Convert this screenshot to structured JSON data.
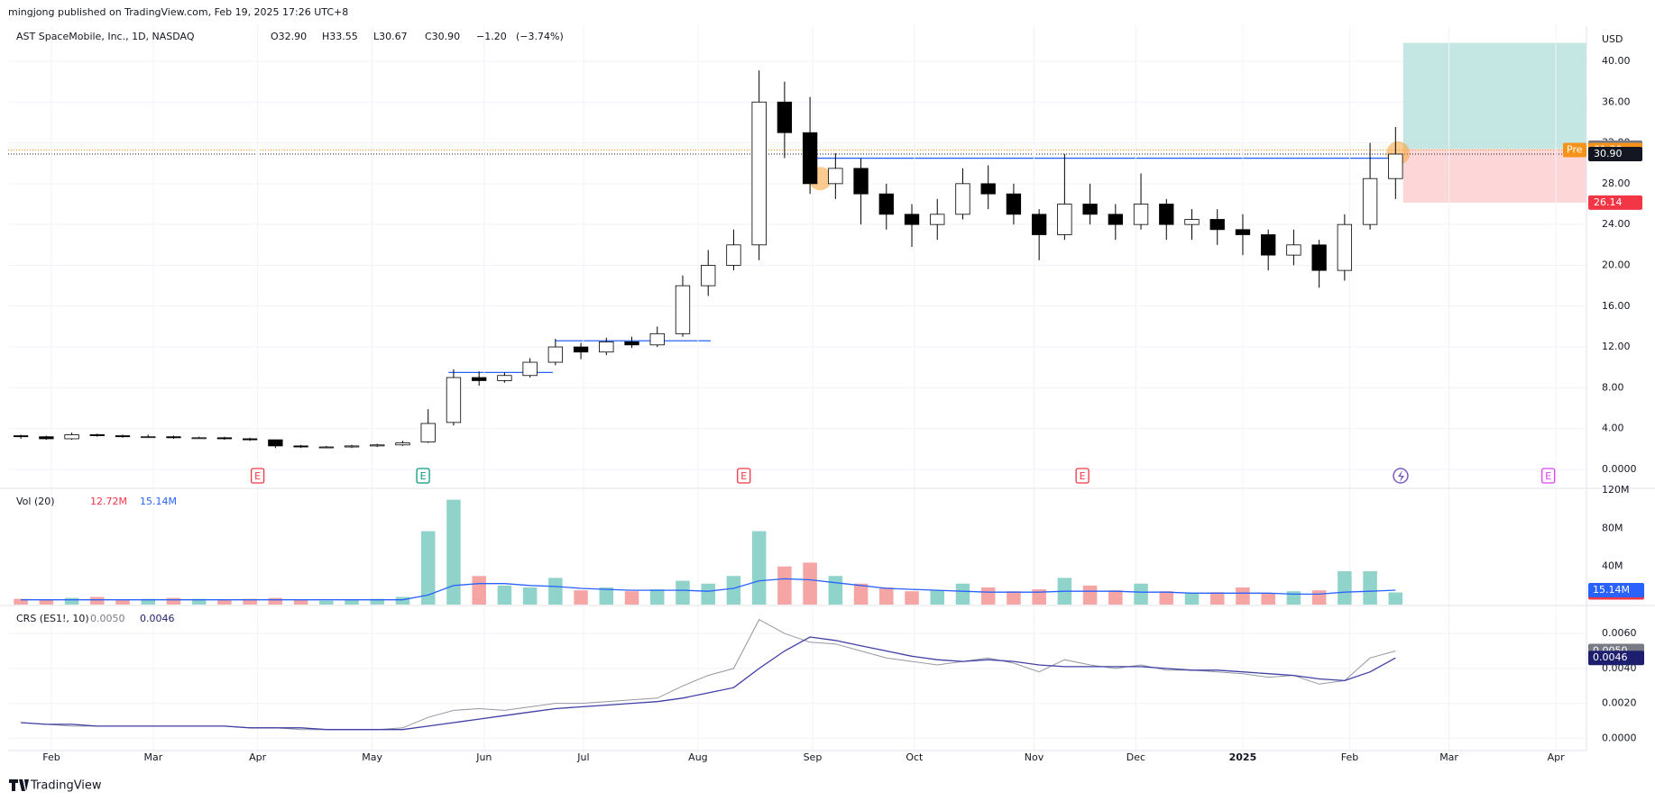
{
  "header": {
    "publisher": "mingjong published on TradingView.com, Feb 19, 2025 17:26 UTC+8",
    "footer": "TradingView"
  },
  "chart_data": [
    {
      "type": "candlestick",
      "title": "AST SpaceMobile, Inc., 1D, NASDAQ",
      "currency": "USD",
      "legend_values": [
        32.9,
        33.55,
        30.67,
        30.9,
        -1.2,
        -3.74
      ],
      "legend_labels": [
        "O32.90",
        "H33.55",
        "L30.67",
        "C30.90",
        "−1.20",
        "(−3.74%)"
      ],
      "up_color": "#ffffff",
      "down_color": "#000000",
      "open": [
        3.3,
        3.2,
        3.0,
        3.4,
        3.3,
        3.2,
        3.2,
        3.1,
        3.1,
        3.0,
        2.9,
        2.3,
        2.2,
        2.2,
        2.3,
        2.4,
        2.7,
        4.6,
        9.0,
        8.7,
        9.2,
        10.5,
        12.0,
        11.5,
        12.5,
        12.2,
        13.3,
        18.0,
        20.0,
        22.0,
        36.0,
        33.0,
        28.0,
        29.5,
        27.0,
        25.0,
        24.0,
        25.0,
        28.0,
        27.0,
        25.0,
        23.0,
        26.0,
        25.0,
        24.0,
        26.0,
        24.0,
        24.5,
        23.5,
        23.0,
        21.0,
        22.0,
        19.5,
        24.0,
        28.5
      ],
      "high": [
        3.4,
        3.3,
        3.6,
        3.5,
        3.4,
        3.4,
        3.3,
        3.2,
        3.2,
        3.1,
        2.9,
        2.4,
        2.3,
        2.4,
        2.5,
        2.8,
        5.9,
        9.8,
        9.6,
        9.5,
        10.9,
        12.8,
        12.4,
        12.9,
        13.0,
        14.0,
        19.0,
        21.5,
        23.5,
        39.1,
        38.0,
        36.5,
        31.0,
        30.5,
        28.0,
        26.0,
        26.5,
        29.5,
        29.8,
        28.0,
        25.5,
        30.9,
        28.0,
        26.0,
        29.0,
        26.5,
        25.5,
        25.5,
        25.0,
        23.5,
        23.5,
        22.5,
        25.0,
        32.0,
        33.55
      ],
      "low": [
        3.0,
        2.9,
        2.9,
        3.2,
        3.1,
        3.1,
        3.0,
        3.0,
        2.9,
        2.8,
        2.1,
        2.1,
        2.1,
        2.1,
        2.2,
        2.3,
        2.6,
        4.3,
        8.2,
        8.5,
        9.0,
        10.2,
        10.8,
        11.2,
        11.9,
        12.0,
        13.0,
        17.0,
        19.5,
        20.5,
        30.5,
        27.0,
        26.5,
        24.0,
        23.5,
        21.8,
        22.5,
        24.5,
        25.5,
        24.0,
        20.5,
        22.5,
        24.0,
        22.5,
        23.5,
        22.5,
        22.5,
        22.0,
        21.0,
        19.5,
        20.0,
        17.8,
        18.5,
        23.5,
        26.5
      ],
      "close": [
        3.2,
        3.0,
        3.4,
        3.3,
        3.2,
        3.2,
        3.1,
        3.1,
        3.0,
        2.9,
        2.3,
        2.2,
        2.2,
        2.3,
        2.4,
        2.6,
        4.5,
        9.0,
        8.7,
        9.2,
        10.5,
        12.0,
        11.5,
        12.5,
        12.2,
        13.3,
        18.0,
        20.0,
        22.0,
        36.0,
        33.0,
        28.0,
        29.5,
        27.0,
        25.0,
        24.0,
        25.0,
        28.0,
        27.0,
        25.0,
        23.0,
        26.0,
        25.0,
        24.0,
        26.0,
        24.0,
        24.5,
        23.5,
        23.0,
        21.0,
        22.0,
        19.5,
        24.0,
        28.5,
        30.9
      ],
      "xlim": [
        0,
        62
      ],
      "ylim": [
        -1.77,
        43.44
      ],
      "yticks": [
        {
          "value": 0,
          "label": "0.0000"
        },
        {
          "value": 4,
          "label": "4.00"
        },
        {
          "value": 8,
          "label": "8.00"
        },
        {
          "value": 12,
          "label": "12.00"
        },
        {
          "value": 16,
          "label": "16.00"
        },
        {
          "value": 20,
          "label": "20.00"
        },
        {
          "value": 24,
          "label": "24.00"
        },
        {
          "value": 28,
          "label": "28.00"
        },
        {
          "value": 32,
          "label": "32.00"
        },
        {
          "value": 36,
          "label": "36.00"
        },
        {
          "value": 40,
          "label": "40.00"
        }
      ],
      "grid": true,
      "price_labels": [
        {
          "value": 31.53,
          "label": "31.53",
          "color": "#787b86"
        },
        {
          "value": 31.3,
          "label": "31.30",
          "color": "#f7931a",
          "tag": "Pre",
          "line": true
        },
        {
          "value": 30.9,
          "label": "30.90",
          "color": "#131722",
          "line": true
        },
        {
          "value": 26.14,
          "label": "26.14",
          "color": "#f23645"
        }
      ],
      "lines": [
        {
          "y": 30.5,
          "x": [
            31.6,
            54.3
          ],
          "color": "#2962ff"
        },
        {
          "y": 9.5,
          "x": [
            17.3,
            21.4
          ],
          "color": "#2962ff"
        },
        {
          "y": 12.6,
          "x": [
            21.5,
            27.6
          ],
          "color": "#2962ff"
        }
      ],
      "position": {
        "x": [
          54.8,
          62
        ],
        "entry": 31.4,
        "target": 41.8,
        "stop": 26.14,
        "colors": [
          "#b2dfdb",
          "#fdd3d3"
        ]
      },
      "highlights": [
        {
          "x": 31.9,
          "y": 28.5,
          "color": "#f7a034"
        },
        {
          "x": 54.6,
          "y": 31.0,
          "color": "#f7a034"
        }
      ],
      "markers": [
        {
          "x": 9.8,
          "label": "E",
          "color": "#f23645"
        },
        {
          "x": 16.3,
          "label": "E",
          "color": "#089981"
        },
        {
          "x": 28.9,
          "label": "E",
          "color": "#f23645"
        },
        {
          "x": 42.2,
          "label": "E",
          "color": "#f23645"
        },
        {
          "x": 54.7,
          "color": "#7e57c2"
        },
        {
          "x": 60.5,
          "label": "E",
          "color": "#e040fb"
        }
      ]
    },
    {
      "type": "bar",
      "title": "Vol (20)",
      "xlim": [
        0,
        62
      ],
      "ylim": [
        0,
        121
      ],
      "yticks": [
        {
          "value": 40,
          "label": "40M"
        },
        {
          "value": 80,
          "label": "80M"
        },
        {
          "value": 120,
          "label": "120M"
        }
      ],
      "series": [
        {
          "up_color": "#8fd3cb",
          "down_color": "#f5a6a4",
          "values": [
            6,
            5,
            7,
            8,
            5,
            6,
            7,
            6,
            5,
            6,
            7,
            5,
            4,
            5,
            6,
            8,
            77,
            110,
            30,
            20,
            18,
            28,
            15,
            18,
            14,
            16,
            25,
            22,
            30,
            77,
            40,
            44,
            30,
            22,
            18,
            14,
            15,
            22,
            18,
            14,
            16,
            28,
            20,
            15,
            22,
            14,
            12,
            13,
            18,
            12,
            14,
            15,
            35,
            35,
            12.72
          ]
        },
        {
          "color": "#2962ff",
          "values": [
            5,
            5,
            5,
            5,
            5,
            5,
            5,
            5,
            5,
            5,
            5,
            5,
            5,
            5,
            5,
            5,
            10,
            20,
            22,
            22,
            20,
            19,
            17,
            16,
            15,
            15,
            15,
            14,
            17,
            25,
            27,
            26,
            23,
            20,
            17,
            16,
            15,
            14,
            13,
            13,
            13,
            14,
            14,
            14,
            13,
            13,
            12,
            12,
            12,
            12,
            11,
            11,
            13,
            14,
            15.14
          ]
        }
      ],
      "last_labels": [
        "12.72M",
        "15.14M"
      ],
      "last_colors": [
        "#f23645",
        "#2962ff"
      ]
    },
    {
      "type": "line",
      "title": "CRS (ES1!, 10)",
      "xlim": [
        0,
        62
      ],
      "ylim": [
        -0.0007,
        0.0075
      ],
      "yticks": [
        {
          "value": 0,
          "label": "0.0000"
        },
        {
          "value": 0.002,
          "label": "0.0020"
        },
        {
          "value": 0.004,
          "label": "0.0040"
        },
        {
          "value": 0.006,
          "label": "0.0060"
        }
      ],
      "grid": true,
      "series": [
        {
          "color": "#9598a1",
          "values": [
            0.0009,
            0.0008,
            0.0007,
            0.0007,
            0.0007,
            0.0007,
            0.0007,
            0.0007,
            0.0007,
            0.0006,
            0.0006,
            0.0005,
            0.0005,
            0.0005,
            0.0005,
            0.0006,
            0.0012,
            0.0016,
            0.0017,
            0.0016,
            0.0018,
            0.002,
            0.002,
            0.0021,
            0.0022,
            0.0023,
            0.003,
            0.0036,
            0.004,
            0.0068,
            0.006,
            0.0055,
            0.0054,
            0.005,
            0.0046,
            0.0044,
            0.0042,
            0.0044,
            0.0046,
            0.0043,
            0.0038,
            0.0045,
            0.0042,
            0.004,
            0.0042,
            0.0039,
            0.0039,
            0.0038,
            0.0037,
            0.0035,
            0.0036,
            0.0031,
            0.0033,
            0.0046,
            0.005
          ]
        },
        {
          "color": "#3f3fa6",
          "values": [
            0.0009,
            0.0008,
            0.0008,
            0.0007,
            0.0007,
            0.0007,
            0.0007,
            0.0007,
            0.0007,
            0.0006,
            0.0006,
            0.0006,
            0.0005,
            0.0005,
            0.0005,
            0.0005,
            0.0007,
            0.0009,
            0.0011,
            0.0013,
            0.0015,
            0.0017,
            0.0018,
            0.0019,
            0.002,
            0.0021,
            0.0023,
            0.0026,
            0.0029,
            0.004,
            0.005,
            0.0058,
            0.0056,
            0.0053,
            0.005,
            0.0047,
            0.0045,
            0.0044,
            0.0045,
            0.0044,
            0.0042,
            0.0041,
            0.0041,
            0.0041,
            0.0041,
            0.004,
            0.0039,
            0.0039,
            0.0038,
            0.0037,
            0.0036,
            0.0034,
            0.0033,
            0.0038,
            0.0046
          ]
        }
      ],
      "last_labels": [
        "0.0050",
        "0.0046"
      ],
      "last_colors": [
        "#787b86",
        "#1e1e6e"
      ],
      "xticks": [
        {
          "value": 1.7,
          "label": "Feb"
        },
        {
          "value": 5.7,
          "label": "Mar"
        },
        {
          "value": 9.8,
          "label": "Apr"
        },
        {
          "value": 14.3,
          "label": "May"
        },
        {
          "value": 18.7,
          "label": "Jun"
        },
        {
          "value": 22.6,
          "label": "Jul"
        },
        {
          "value": 27.1,
          "label": "Aug"
        },
        {
          "value": 31.6,
          "label": "Sep"
        },
        {
          "value": 35.6,
          "label": "Oct"
        },
        {
          "value": 40.3,
          "label": "Nov"
        },
        {
          "value": 44.3,
          "label": "Dec"
        },
        {
          "value": 48.5,
          "label": "2025",
          "bold": true
        },
        {
          "value": 52.7,
          "label": "Feb"
        },
        {
          "value": 56.6,
          "label": "Mar"
        },
        {
          "value": 60.8,
          "label": "Apr"
        }
      ]
    }
  ]
}
